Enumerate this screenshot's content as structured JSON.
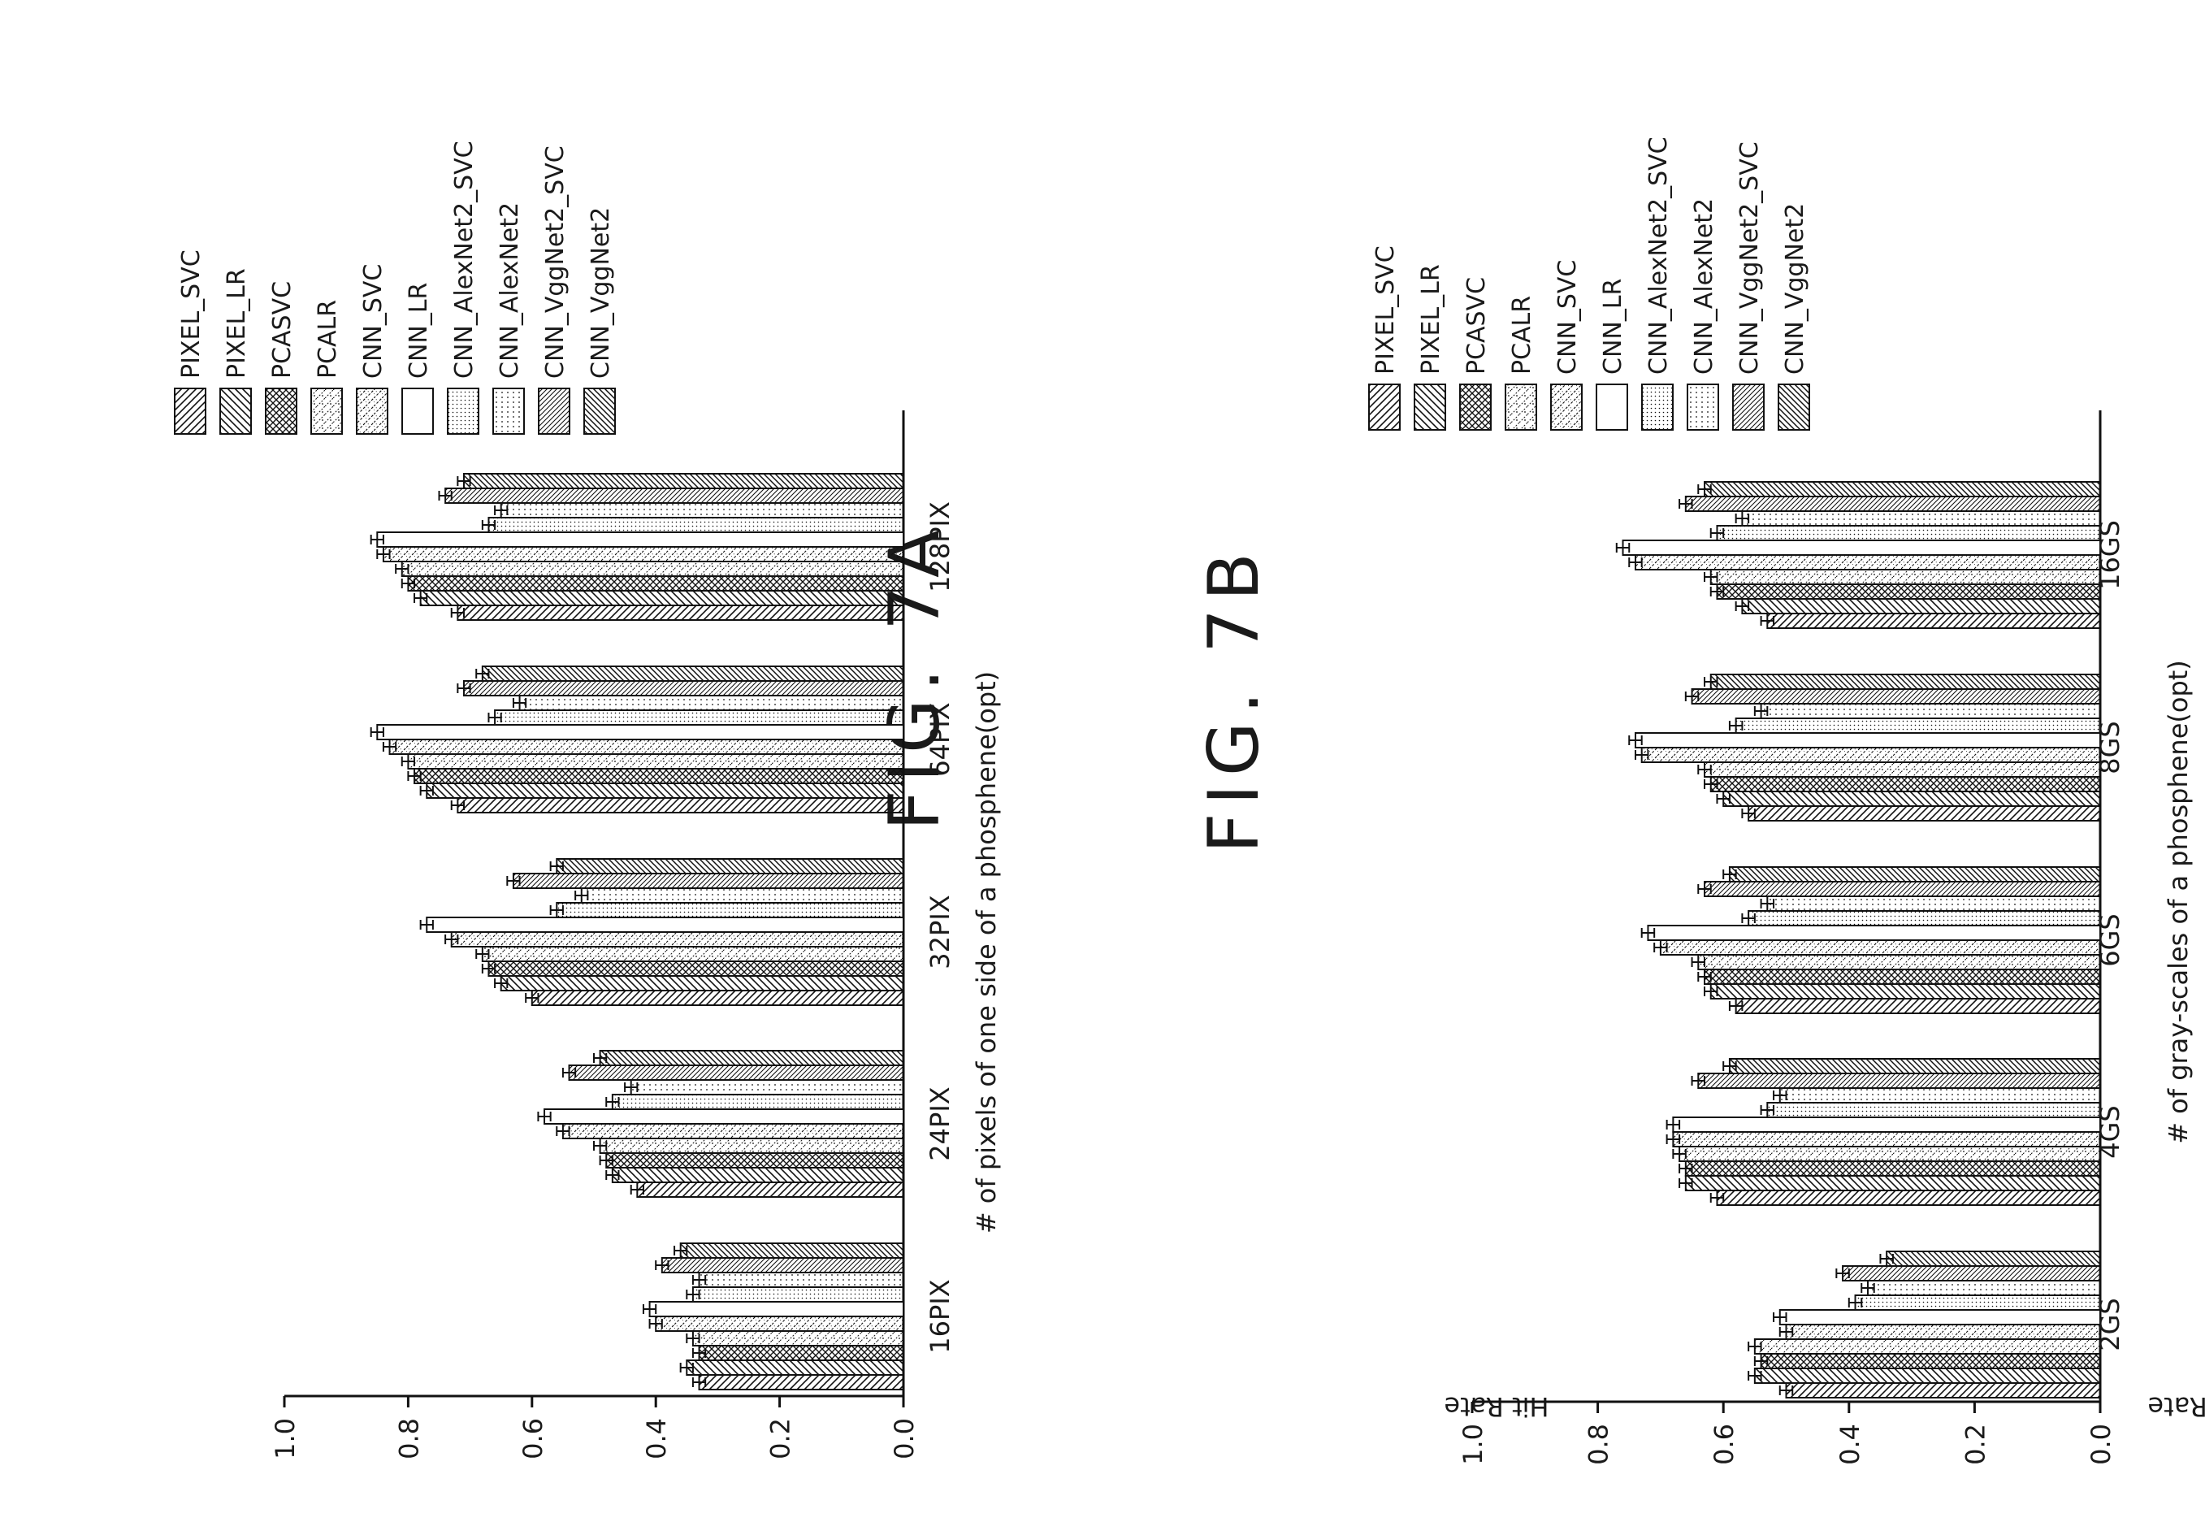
{
  "figures": [
    {
      "title": "FIG. 7A",
      "xlabel": "# of pixels of one side of a phosphene(opt)",
      "ylabel": "Hit Rate"
    },
    {
      "title": "FIG. 7B",
      "xlabel": "# of gray-scales of a phosphene(opt)",
      "ylabel": "Hit Rate"
    }
  ],
  "legend_patterns": [
    "diag-right",
    "diag-left",
    "crosshatch",
    "dots-dash",
    "dash-dot",
    "none",
    "fine-dots",
    "dotted-line",
    "diag-right-fine",
    "diag-left-fine"
  ],
  "chart_data": [
    {
      "type": "bar",
      "title": "FIG. 7A",
      "xlabel": "# of pixels of one side of a phosphene(opt)",
      "ylabel": "Hit Rate",
      "ylim": [
        0,
        1.0
      ],
      "yticks": [
        "0.0",
        "0.2",
        "0.4",
        "0.6",
        "0.8",
        "1.0"
      ],
      "orientation": "rotated-page",
      "legend_placement": "top-right",
      "error_bars": true,
      "categories": [
        "16PIX",
        "24PIX",
        "32PIX",
        "64PIX",
        "128PIX"
      ],
      "series": [
        {
          "name": "PIXEL_SVC",
          "values": [
            0.33,
            0.43,
            0.6,
            0.72,
            0.72
          ],
          "errors": [
            0.01,
            0.01,
            0.01,
            0.01,
            0.01
          ]
        },
        {
          "name": "PIXEL_LR",
          "values": [
            0.35,
            0.47,
            0.65,
            0.77,
            0.78
          ],
          "errors": [
            0.01,
            0.01,
            0.01,
            0.01,
            0.01
          ]
        },
        {
          "name": "PCASVC",
          "values": [
            0.33,
            0.48,
            0.67,
            0.79,
            0.8
          ],
          "errors": [
            0.01,
            0.01,
            0.01,
            0.01,
            0.01
          ]
        },
        {
          "name": "PCALR",
          "values": [
            0.34,
            0.49,
            0.68,
            0.8,
            0.81
          ],
          "errors": [
            0.01,
            0.01,
            0.01,
            0.01,
            0.01
          ]
        },
        {
          "name": "CNN_SVC",
          "values": [
            0.4,
            0.55,
            0.73,
            0.83,
            0.84
          ],
          "errors": [
            0.01,
            0.01,
            0.01,
            0.01,
            0.01
          ]
        },
        {
          "name": "CNN_LR",
          "values": [
            0.41,
            0.58,
            0.77,
            0.85,
            0.85
          ],
          "errors": [
            0.01,
            0.01,
            0.01,
            0.01,
            0.01
          ]
        },
        {
          "name": "CNN_AlexNet2_SVC",
          "values": [
            0.34,
            0.47,
            0.56,
            0.66,
            0.67
          ],
          "errors": [
            0.01,
            0.01,
            0.01,
            0.01,
            0.01
          ]
        },
        {
          "name": "CNN_AlexNet2",
          "values": [
            0.33,
            0.44,
            0.52,
            0.62,
            0.65
          ],
          "errors": [
            0.01,
            0.01,
            0.01,
            0.01,
            0.01
          ]
        },
        {
          "name": "CNN_VggNet2_SVC",
          "values": [
            0.39,
            0.54,
            0.63,
            0.71,
            0.74
          ],
          "errors": [
            0.01,
            0.01,
            0.01,
            0.01,
            0.01
          ]
        },
        {
          "name": "CNN_VggNet2",
          "values": [
            0.36,
            0.49,
            0.56,
            0.68,
            0.71
          ],
          "errors": [
            0.01,
            0.01,
            0.01,
            0.01,
            0.01
          ]
        }
      ]
    },
    {
      "type": "bar",
      "title": "FIG. 7B",
      "xlabel": "# of gray-scales of a phosphene(opt)",
      "ylabel": "Hit Rate",
      "ylim": [
        0,
        1.0
      ],
      "yticks": [
        "0.0",
        "0.2",
        "0.4",
        "0.6",
        "0.8",
        "1.0"
      ],
      "orientation": "rotated-page",
      "legend_placement": "top-right",
      "error_bars": true,
      "categories": [
        "2GS",
        "4GS",
        "6GS",
        "8GS",
        "16GS"
      ],
      "series": [
        {
          "name": "PIXEL_SVC",
          "values": [
            0.5,
            0.61,
            0.58,
            0.56,
            0.53
          ],
          "errors": [
            0.01,
            0.01,
            0.01,
            0.01,
            0.01
          ]
        },
        {
          "name": "PIXEL_LR",
          "values": [
            0.55,
            0.66,
            0.62,
            0.6,
            0.57
          ],
          "errors": [
            0.01,
            0.01,
            0.01,
            0.01,
            0.01
          ]
        },
        {
          "name": "PCASVC",
          "values": [
            0.54,
            0.66,
            0.63,
            0.62,
            0.61
          ],
          "errors": [
            0.01,
            0.01,
            0.01,
            0.01,
            0.01
          ]
        },
        {
          "name": "PCALR",
          "values": [
            0.55,
            0.67,
            0.64,
            0.63,
            0.62
          ],
          "errors": [
            0.01,
            0.01,
            0.01,
            0.01,
            0.01
          ]
        },
        {
          "name": "CNN_SVC",
          "values": [
            0.5,
            0.68,
            0.7,
            0.73,
            0.74
          ],
          "errors": [
            0.01,
            0.01,
            0.01,
            0.01,
            0.01
          ]
        },
        {
          "name": "CNN_LR",
          "values": [
            0.51,
            0.68,
            0.72,
            0.74,
            0.76
          ],
          "errors": [
            0.01,
            0.01,
            0.01,
            0.01,
            0.01
          ]
        },
        {
          "name": "CNN_AlexNet2_SVC",
          "values": [
            0.39,
            0.53,
            0.56,
            0.58,
            0.61
          ],
          "errors": [
            0.01,
            0.01,
            0.01,
            0.01,
            0.01
          ]
        },
        {
          "name": "CNN_AlexNet2",
          "values": [
            0.37,
            0.51,
            0.53,
            0.54,
            0.57
          ],
          "errors": [
            0.01,
            0.01,
            0.01,
            0.01,
            0.01
          ]
        },
        {
          "name": "CNN_VggNet2_SVC",
          "values": [
            0.41,
            0.64,
            0.63,
            0.65,
            0.66
          ],
          "errors": [
            0.01,
            0.01,
            0.01,
            0.01,
            0.01
          ]
        },
        {
          "name": "CNN_VggNet2",
          "values": [
            0.34,
            0.59,
            0.59,
            0.62,
            0.63
          ],
          "errors": [
            0.01,
            0.01,
            0.01,
            0.01,
            0.01
          ]
        }
      ]
    }
  ]
}
